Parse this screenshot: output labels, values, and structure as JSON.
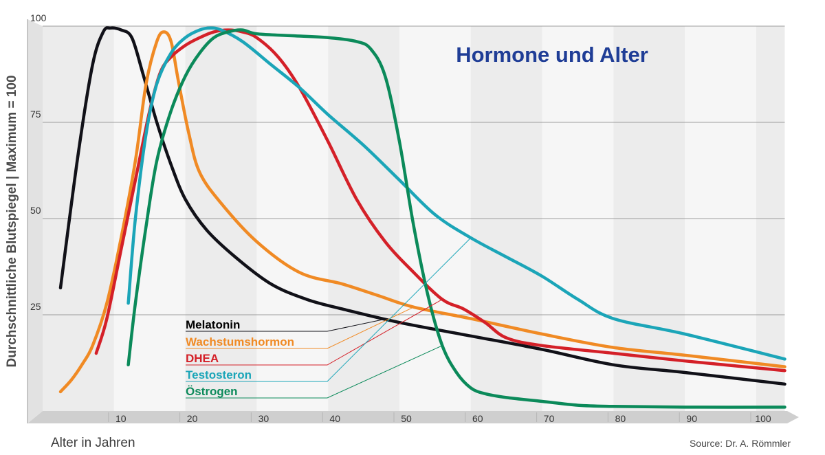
{
  "chart_data": {
    "type": "line",
    "title": "Hormone und Alter",
    "xlabel": "Alter in Jahren",
    "ylabel": "Durchschnittliche Blutspiegel | Maximum = 100",
    "source": "Source: Dr. A. Römmler",
    "xlim": [
      0,
      104
    ],
    "ylim": [
      0,
      100
    ],
    "x_ticks": [
      10,
      20,
      30,
      40,
      50,
      60,
      70,
      80,
      90,
      100
    ],
    "y_ticks": [
      25,
      50,
      75,
      100
    ],
    "grid": "horizontal",
    "legend_position": "bottom-center",
    "title_color": "#1f3d96",
    "series": [
      {
        "name": "Melatonin",
        "color": "#111118",
        "label_color": "#000000",
        "x": [
          2.5,
          5,
          7,
          8.5,
          9.5,
          11,
          12.5,
          14,
          16,
          18,
          20,
          23,
          27,
          32,
          37,
          42,
          50,
          60,
          70,
          80,
          90,
          104
        ],
        "y": [
          32,
          67,
          90,
          98.5,
          99.5,
          99,
          97,
          88,
          75,
          64,
          55,
          47,
          40,
          33,
          29,
          26.5,
          23,
          19.5,
          16,
          12,
          10,
          7
        ]
      },
      {
        "name": "Wachstumshormon",
        "color": "#f08a24",
        "label_color": "#f08a24",
        "x": [
          2.5,
          4,
          5.5,
          7,
          9,
          11,
          13,
          14.5,
          16,
          17,
          18,
          19,
          20.5,
          22,
          25,
          30,
          36,
          42,
          47,
          52,
          60,
          70,
          80,
          90,
          104
        ],
        "y": [
          5,
          8,
          12,
          17,
          28,
          45,
          65,
          85,
          96,
          98.5,
          96,
          86,
          72,
          62,
          54,
          44,
          36,
          33,
          30,
          27,
          24,
          20,
          16.5,
          14.5,
          11.5
        ]
      },
      {
        "name": "DHEA",
        "color": "#d42028",
        "label_color": "#d42028",
        "x": [
          7.5,
          9,
          11,
          13,
          15,
          16.5,
          18,
          20,
          22,
          24,
          26,
          28,
          30,
          33,
          36,
          40,
          44,
          48,
          52,
          56,
          59,
          62,
          65,
          70,
          80,
          90,
          104
        ],
        "y": [
          15,
          24,
          42,
          60,
          78,
          88,
          92,
          95,
          97,
          98.5,
          99,
          98.5,
          97,
          92,
          84,
          70,
          55,
          44,
          36,
          29,
          26.5,
          23,
          19,
          17,
          15,
          13,
          10.5
        ]
      },
      {
        "name": "Testosteron",
        "color": "#1ba5b8",
        "label_color": "#1ba5b8",
        "x": [
          12,
          13,
          14.5,
          16,
          18,
          20,
          22,
          23.5,
          25,
          28,
          32,
          36,
          40,
          45,
          50,
          55,
          60,
          65,
          70,
          75,
          80,
          90,
          104
        ],
        "y": [
          28,
          50,
          72,
          85,
          93,
          97,
          99,
          99.5,
          99,
          96,
          90,
          84,
          77,
          69,
          60,
          51,
          45,
          40,
          35,
          29,
          24,
          20,
          13.5
        ]
      },
      {
        "name": "Östrogen",
        "color": "#0b8a5a",
        "label_color": "#0b8a5a",
        "x": [
          12,
          13,
          14.5,
          16,
          18,
          20,
          22,
          24,
          26,
          28,
          30,
          35,
          40,
          44,
          46,
          48,
          50,
          52,
          54,
          56,
          58,
          60,
          62,
          65,
          70,
          75,
          80,
          90,
          104
        ],
        "y": [
          12,
          28,
          48,
          65,
          78,
          87,
          93,
          97,
          98.5,
          99,
          98,
          97.5,
          97,
          96,
          94,
          87,
          70,
          48,
          30,
          17,
          10,
          6,
          4.5,
          3.5,
          2.5,
          1.5,
          1.2,
          1,
          1
        ]
      }
    ]
  }
}
